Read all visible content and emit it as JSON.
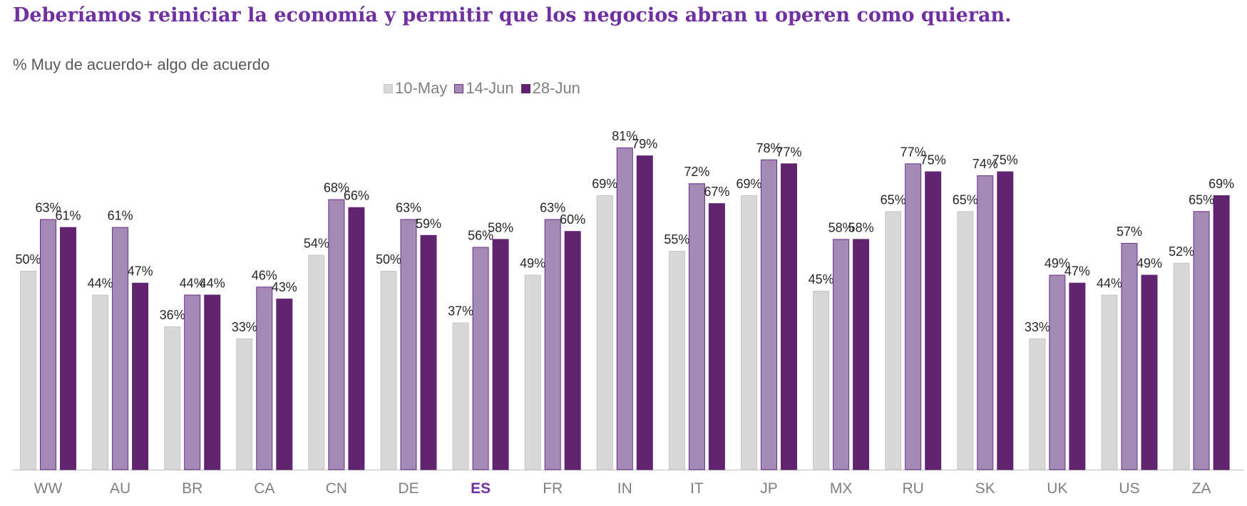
{
  "chart_data": {
    "type": "bar",
    "title": "Deberíamos reiniciar la economía y permitir que los negocios abran u operen como quieran.",
    "subtitle": "% Muy de acuerdo+ algo de acuerdo",
    "categories": [
      "WW",
      "AU",
      "BR",
      "CA",
      "CN",
      "DE",
      "ES",
      "FR",
      "IN",
      "IT",
      "JP",
      "MX",
      "RU",
      "SK",
      "UK",
      "US",
      "ZA"
    ],
    "highlight_category": "ES",
    "series": [
      {
        "name": "10-May",
        "color": "#d9d8d9",
        "stroke": "#c6c4c8",
        "values": [
          50,
          44,
          36,
          33,
          54,
          50,
          37,
          49,
          69,
          55,
          69,
          45,
          65,
          65,
          33,
          44,
          52
        ]
      },
      {
        "name": "14-Jun",
        "color": "#a48bb5",
        "stroke": "#6e2c8a",
        "values": [
          63,
          61,
          44,
          46,
          68,
          63,
          56,
          63,
          81,
          72,
          78,
          58,
          77,
          74,
          49,
          57,
          65
        ]
      },
      {
        "name": "28-Jun",
        "color": "#612470",
        "stroke": "#612470",
        "values": [
          61,
          47,
          44,
          43,
          66,
          59,
          58,
          60,
          79,
          67,
          77,
          58,
          75,
          75,
          47,
          49,
          69
        ]
      }
    ],
    "value_suffix": "%",
    "ylim": [
      0,
      90
    ],
    "grid": false,
    "legend_position": "top-center",
    "colors": {
      "title": "#7030a0",
      "highlight_label": "#7030a0",
      "axis_label": "#7f7f7f",
      "data_label": "#262626",
      "axis_line": "#bfbfbf"
    }
  }
}
